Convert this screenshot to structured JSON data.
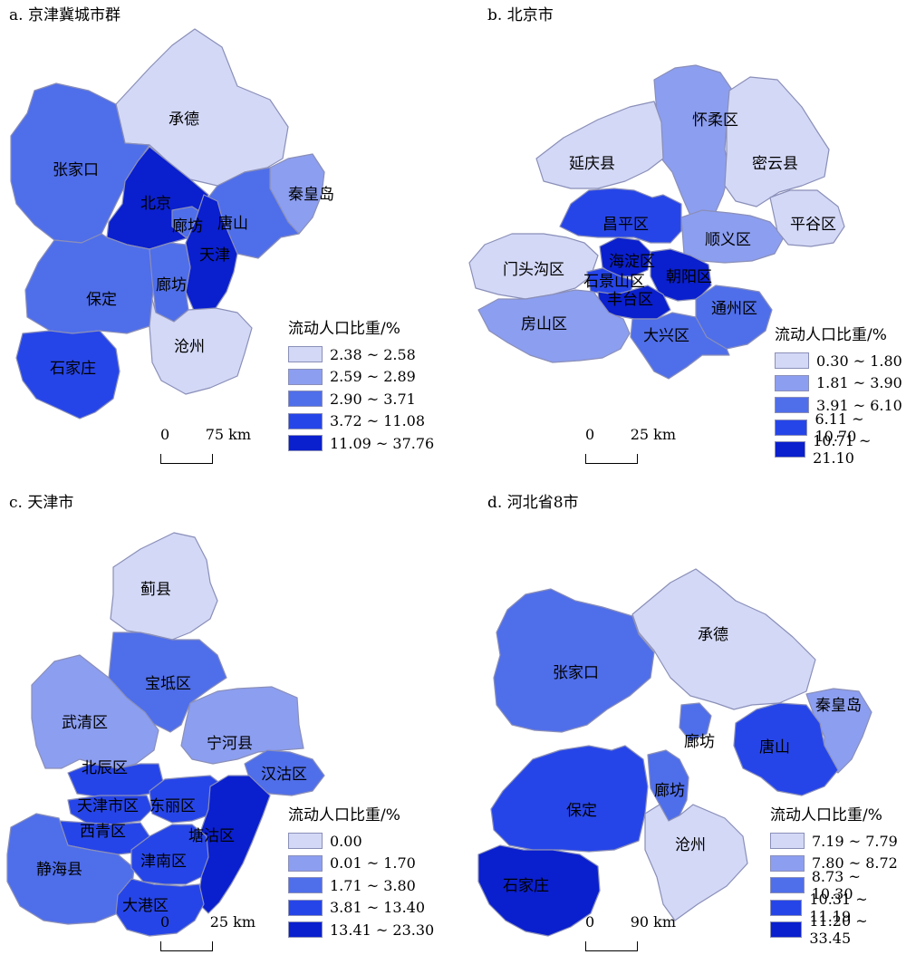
{
  "colors": {
    "c1": "#d3d8f6",
    "c2": "#8c9ef0",
    "c3": "#4f6eea",
    "c4": "#2645e8",
    "c5": "#0a1fcd",
    "border": "#8a8fb8"
  },
  "panels": [
    {
      "title": "a. 京津冀城市群",
      "legend_title": "流动人口比重/%",
      "legend": [
        "2.38 ~ 2.58",
        "2.59 ~ 2.89",
        "2.90 ~ 3.71",
        "3.72 ~ 11.08",
        "11.09 ~ 37.76"
      ],
      "scale": {
        "start": "0",
        "end": "75 km"
      },
      "regions": [
        {
          "name": "承德",
          "class": 1
        },
        {
          "name": "张家口",
          "class": 3
        },
        {
          "name": "秦皇岛",
          "class": 2
        },
        {
          "name": "北京",
          "class": 5
        },
        {
          "name": "廊坊",
          "class": 3
        },
        {
          "name": "唐山",
          "class": 3
        },
        {
          "name": "天津",
          "class": 5
        },
        {
          "name": "保定",
          "class": 3
        },
        {
          "name": "廊坊",
          "class": 3
        },
        {
          "name": "沧州",
          "class": 1
        },
        {
          "name": "石家庄",
          "class": 4
        }
      ]
    },
    {
      "title": "b. 北京市",
      "legend_title": "流动人口比重/%",
      "legend": [
        "0.30 ~ 1.80",
        "1.81 ~ 3.90",
        "3.91 ~ 6.10",
        "6.11 ~ 10.70",
        "10.71 ~ 21.10"
      ],
      "scale": {
        "start": "0",
        "end": "25 km"
      },
      "regions": [
        {
          "name": "怀柔区",
          "class": 2
        },
        {
          "name": "延庆县",
          "class": 1
        },
        {
          "name": "密云县",
          "class": 1
        },
        {
          "name": "昌平区",
          "class": 4
        },
        {
          "name": "顺义区",
          "class": 2
        },
        {
          "name": "平谷区",
          "class": 1
        },
        {
          "name": "门头沟区",
          "class": 1
        },
        {
          "name": "海淀区",
          "class": 5
        },
        {
          "name": "石景山区",
          "class": 4
        },
        {
          "name": "朝阳区",
          "class": 5
        },
        {
          "name": "丰台区",
          "class": 5
        },
        {
          "name": "通州区",
          "class": 3
        },
        {
          "name": "房山区",
          "class": 2
        },
        {
          "name": "大兴区",
          "class": 3
        }
      ]
    },
    {
      "title": "c. 天津市",
      "legend_title": "流动人口比重/%",
      "legend": [
        "0.00",
        "0.01 ~ 1.70",
        "1.71 ~ 3.80",
        "3.81 ~ 13.40",
        "13.41 ~ 23.30"
      ],
      "scale": {
        "start": "0",
        "end": "25 km"
      },
      "regions": [
        {
          "name": "蓟县",
          "class": 1
        },
        {
          "name": "宝坻区",
          "class": 3
        },
        {
          "name": "武清区",
          "class": 2
        },
        {
          "name": "宁河县",
          "class": 2
        },
        {
          "name": "汉沽区",
          "class": 3
        },
        {
          "name": "北辰区",
          "class": 4
        },
        {
          "name": "天津市区",
          "class": 4
        },
        {
          "name": "东丽区",
          "class": 4
        },
        {
          "name": "西青区",
          "class": 4
        },
        {
          "name": "塘沽区",
          "class": 5
        },
        {
          "name": "静海县",
          "class": 3
        },
        {
          "name": "津南区",
          "class": 4
        },
        {
          "name": "大港区",
          "class": 4
        }
      ]
    },
    {
      "title": "d. 河北省8市",
      "legend_title": "流动人口比重/%",
      "legend": [
        "7.19 ~ 7.79",
        "7.80 ~ 8.72",
        "8.73 ~ 10.30",
        "10.31 ~ 11.19",
        "11.20 ~ 33.45"
      ],
      "scale": {
        "start": "0",
        "end": "90 km"
      },
      "regions": [
        {
          "name": "承德",
          "class": 1
        },
        {
          "name": "张家口",
          "class": 3
        },
        {
          "name": "秦皇岛",
          "class": 2
        },
        {
          "name": "廊坊",
          "class": 3
        },
        {
          "name": "唐山",
          "class": 4
        },
        {
          "name": "保定",
          "class": 4
        },
        {
          "name": "廊坊",
          "class": 3
        },
        {
          "name": "沧州",
          "class": 1
        },
        {
          "name": "石家庄",
          "class": 5
        }
      ]
    }
  ]
}
